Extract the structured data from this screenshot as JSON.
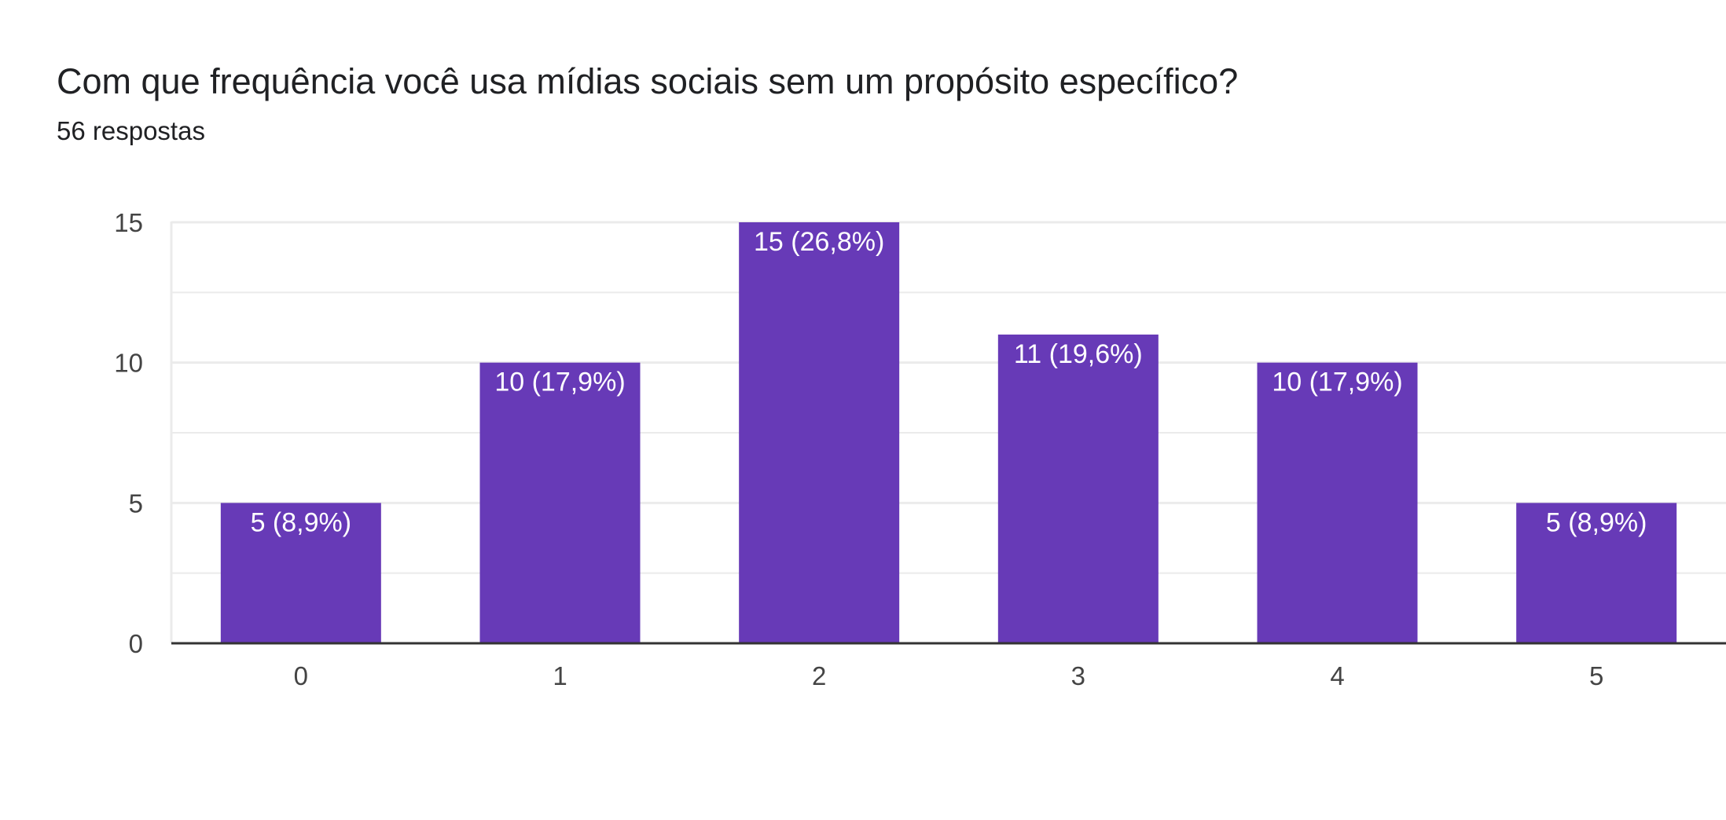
{
  "question": {
    "title": "Com que frequência você usa mídias sociais sem um propósito específico?",
    "responses": "56 respostas"
  },
  "colors": {
    "bar": "#673AB7",
    "grid": "#EBEBEB",
    "axis": "#333333",
    "data_label": "#FFFFFF"
  },
  "chart_data": {
    "type": "bar",
    "categories": [
      "0",
      "1",
      "2",
      "3",
      "4",
      "5"
    ],
    "values": [
      5,
      10,
      15,
      11,
      10,
      5
    ],
    "data_labels": [
      "5 (8,9%)",
      "10 (17,9%)",
      "15 (26,8%)",
      "11 (19,6%)",
      "10 (17,9%)",
      "5 (8,9%)"
    ],
    "y_ticks": [
      "0",
      "5",
      "10",
      "15"
    ],
    "ylim": [
      0,
      15
    ],
    "xlabel": "",
    "ylabel": "",
    "grid": true,
    "legend": "none"
  }
}
